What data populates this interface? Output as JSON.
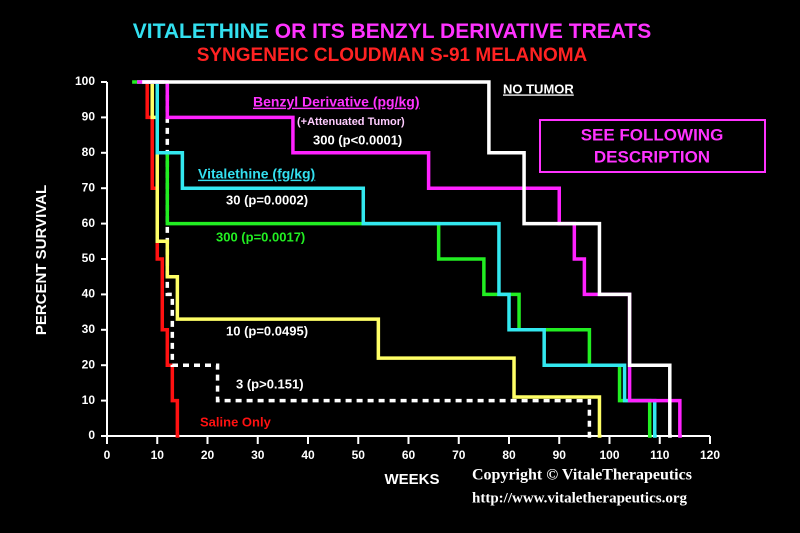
{
  "chart_data": {
    "type": "line",
    "step": true,
    "title_parts": [
      {
        "text": "VITALETHINE",
        "color": "#33e0f0"
      },
      {
        "text": " OR ITS BENZYL DERIVATIVE TREATS",
        "color": "#ff33ff"
      }
    ],
    "subtitle": "SYNGENEIC CLOUDMAN S-91 MELANOMA",
    "subtitle_color": "#ff2222",
    "x_label": "WEEKS",
    "y_label": "PERCENT SURVIVAL",
    "xlim": [
      0,
      120
    ],
    "ylim": [
      0,
      100
    ],
    "xticks": [
      0,
      10,
      20,
      30,
      40,
      50,
      60,
      70,
      80,
      90,
      100,
      110,
      120
    ],
    "yticks": [
      0,
      10,
      20,
      30,
      40,
      50,
      60,
      70,
      80,
      90,
      100
    ],
    "series": [
      {
        "name": "NO TUMOR",
        "color": "#ffffff",
        "label_color": "#ffffff",
        "dashed": false,
        "x": [
          7,
          76,
          83,
          98,
          104,
          112
        ],
        "values": [
          100,
          80,
          60,
          40,
          20,
          0
        ]
      },
      {
        "name": "300 (p<0.0001)",
        "color": "#ff22ff",
        "label_color": "#ffffff",
        "dashed": false,
        "x": [
          6,
          12,
          37,
          64,
          90,
          93,
          95,
          104,
          114
        ],
        "values": [
          100,
          90,
          80,
          70,
          60,
          50,
          40,
          10,
          0
        ]
      },
      {
        "name": "30 (p=0.0002)",
        "color": "#33e8f0",
        "label_color": "#ffffff",
        "dashed": false,
        "x": [
          6,
          10,
          15,
          51,
          78,
          80,
          87,
          103,
          109
        ],
        "values": [
          100,
          80,
          70,
          60,
          40,
          30,
          20,
          10,
          0
        ]
      },
      {
        "name": "300 (p=0.0017)",
        "color": "#22ee22",
        "label_color": "#22ee22",
        "dashed": false,
        "x": [
          5,
          10,
          12,
          66,
          75,
          82,
          96,
          102,
          108
        ],
        "values": [
          100,
          80,
          60,
          50,
          40,
          30,
          20,
          10,
          0
        ]
      },
      {
        "name": "10 (p=0.0495)",
        "color": "#ffff66",
        "label_color": "#ffffff",
        "dashed": false,
        "x": [
          8,
          9,
          10,
          12,
          14,
          54,
          81,
          98
        ],
        "values": [
          100,
          90,
          55,
          45,
          33,
          22,
          11,
          0
        ]
      },
      {
        "name": "3 (p>0.151)",
        "color": "#ffffff",
        "label_color": "#ffffff",
        "dashed": true,
        "x": [
          8,
          12,
          13,
          22,
          96
        ],
        "values": [
          100,
          40,
          20,
          10,
          0
        ]
      },
      {
        "name": "Saline Only",
        "color": "#ff1111",
        "label_color": "#ff1111",
        "dashed": false,
        "x": [
          6,
          8,
          9,
          10,
          11,
          12,
          13,
          14
        ],
        "values": [
          100,
          90,
          70,
          50,
          30,
          20,
          10,
          0
        ]
      }
    ],
    "annotations": [
      {
        "text": "Benzyl Derivative (pg/kg)",
        "color": "#ff33ff"
      },
      {
        "text": "(+Attenuated Tumor)",
        "color": "#ffccff"
      },
      {
        "text": "Vitalethine (fg/kg)",
        "color": "#33e0f0"
      },
      {
        "text": "SEE FOLLOWING",
        "color": "#ff33ff"
      },
      {
        "text": "DESCRIPTION",
        "color": "#ff33ff"
      },
      {
        "text": "Copyright © VitaleTherapeutics",
        "color": "#ffffff"
      },
      {
        "text": "http://www.vitaletherapeutics.org",
        "color": "#ffffff"
      }
    ]
  }
}
